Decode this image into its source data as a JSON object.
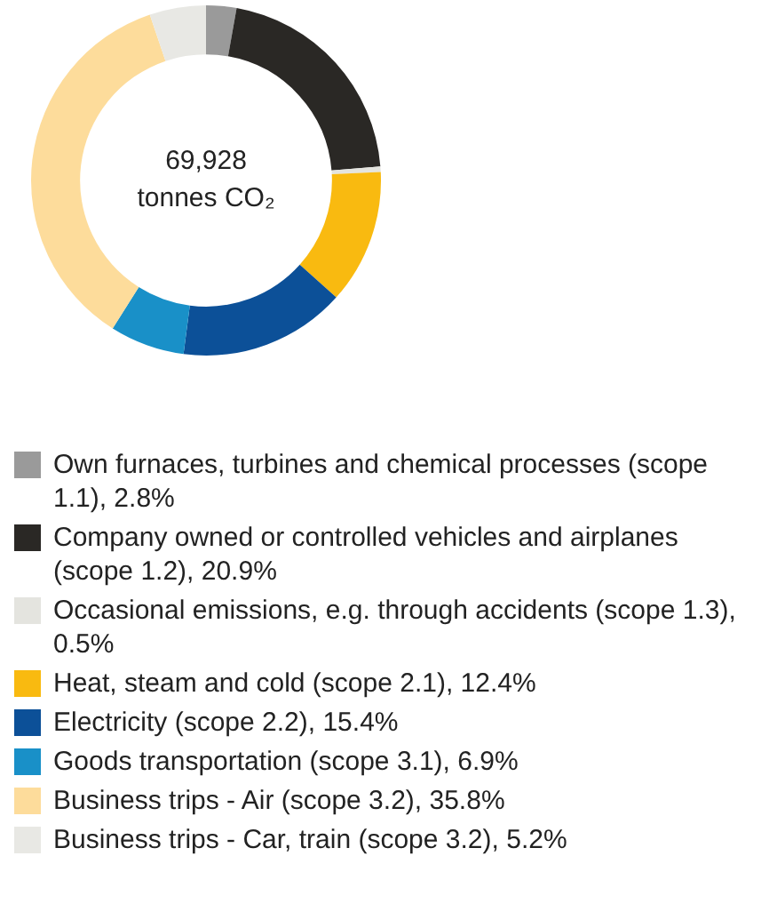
{
  "chart_data": {
    "type": "donut",
    "categories": [
      "Own furnaces, turbines and chemical processes (scope 1.1), 2.8%",
      "Company owned or controlled vehicles and airplanes (scope 1.2), 20.9%",
      "Occasional emissions, e.g. through accidents (scope 1.3), 0.5%",
      "Heat, steam and cold (scope 2.1), 12.4%",
      "Electricity (scope 2.2), 15.4%",
      "Goods transportation (scope 3.1), 6.9%",
      "Business trips - Air (scope 3.2), 35.8%",
      "Business trips - Car, train (scope 3.2), 5.2%"
    ],
    "values": [
      2.8,
      20.9,
      0.5,
      12.4,
      15.4,
      6.9,
      35.8,
      5.2
    ],
    "colors": [
      "#9a9a9a",
      "#2a2825",
      "#e4e4df",
      "#f9ba10",
      "#0c5098",
      "#1990c8",
      "#fddc9b",
      "#e8e8e4"
    ],
    "annotations": [
      "69,928",
      "tonnes CO₂"
    ],
    "legend": "bottom"
  }
}
